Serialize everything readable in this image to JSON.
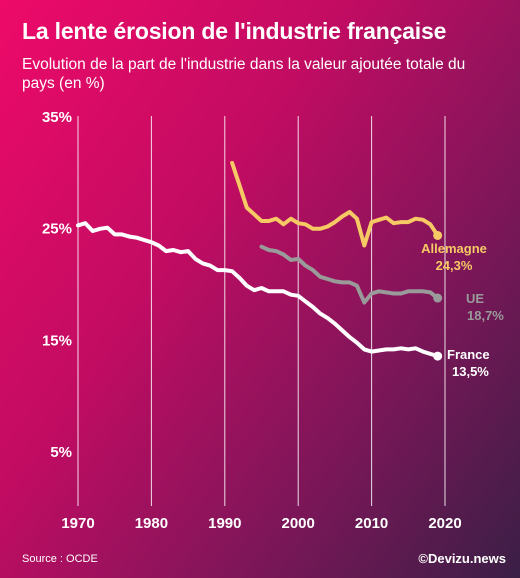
{
  "title": "La lente érosion de l'industrie française",
  "subtitle": "Evolution de la part de l'industrie dans la valeur ajoutée totale du pays (en %)",
  "source": "Source : OCDE",
  "credit": "©Devizu.news",
  "chart_data": {
    "type": "line",
    "x_ticks": [
      1970,
      1980,
      1990,
      2000,
      2010,
      2020
    ],
    "y_ticks": [
      {
        "value": 35,
        "label": "35%"
      },
      {
        "value": 25,
        "label": "25%"
      },
      {
        "value": 15,
        "label": "15%"
      },
      {
        "value": 5,
        "label": "5%"
      }
    ],
    "xlim": [
      1969,
      2021
    ],
    "ylim": [
      5,
      35
    ],
    "grid": "vertical",
    "series": [
      {
        "name": "France",
        "end_label": "13,5%",
        "color": "#ffffff",
        "x": [
          1970,
          1971,
          1972,
          1973,
          1974,
          1975,
          1976,
          1977,
          1978,
          1979,
          1980,
          1981,
          1982,
          1983,
          1984,
          1985,
          1986,
          1987,
          1988,
          1989,
          1990,
          1991,
          1992,
          1993,
          1994,
          1995,
          1996,
          1997,
          1998,
          1999,
          2000,
          2001,
          2002,
          2003,
          2004,
          2005,
          2006,
          2007,
          2008,
          2009,
          2010,
          2011,
          2012,
          2013,
          2014,
          2015,
          2016,
          2017,
          2018,
          2019
        ],
        "y": [
          25.2,
          25.4,
          24.7,
          24.9,
          25.0,
          24.4,
          24.4,
          24.2,
          24.1,
          23.9,
          23.7,
          23.4,
          22.9,
          23.0,
          22.8,
          22.9,
          22.2,
          21.8,
          21.6,
          21.2,
          21.2,
          21.1,
          20.5,
          19.8,
          19.4,
          19.6,
          19.3,
          19.3,
          19.3,
          19.0,
          18.9,
          18.4,
          17.9,
          17.3,
          16.9,
          16.4,
          15.8,
          15.2,
          14.7,
          14.1,
          13.9,
          14.0,
          14.1,
          14.1,
          14.2,
          14.1,
          14.2,
          13.9,
          13.7,
          13.5
        ]
      },
      {
        "name": "UE",
        "end_label": "18,7%",
        "color": "#9a9a9a",
        "x": [
          1995,
          1996,
          1997,
          1998,
          1999,
          2000,
          2001,
          2002,
          2003,
          2004,
          2005,
          2006,
          2007,
          2008,
          2009,
          2010,
          2011,
          2012,
          2013,
          2014,
          2015,
          2016,
          2017,
          2018,
          2019
        ],
        "y": [
          23.3,
          23.0,
          22.9,
          22.6,
          22.1,
          22.2,
          21.6,
          21.2,
          20.6,
          20.4,
          20.2,
          20.1,
          20.1,
          19.8,
          18.3,
          19.1,
          19.3,
          19.2,
          19.1,
          19.1,
          19.3,
          19.3,
          19.3,
          19.2,
          18.7
        ]
      },
      {
        "name": "Allemagne",
        "end_label": "24,3%",
        "color": "#f6c965",
        "x": [
          1991,
          1992,
          1993,
          1994,
          1995,
          1996,
          1997,
          1998,
          1999,
          2000,
          2001,
          2002,
          2003,
          2004,
          2005,
          2006,
          2007,
          2008,
          2009,
          2010,
          2011,
          2012,
          2013,
          2014,
          2015,
          2016,
          2017,
          2018,
          2019
        ],
        "y": [
          30.8,
          28.8,
          26.8,
          26.2,
          25.6,
          25.6,
          25.8,
          25.3,
          25.8,
          25.4,
          25.3,
          24.9,
          24.9,
          25.1,
          25.5,
          26.0,
          26.4,
          25.8,
          23.4,
          25.5,
          25.7,
          25.9,
          25.4,
          25.5,
          25.5,
          25.8,
          25.7,
          25.3,
          24.3
        ]
      }
    ]
  }
}
